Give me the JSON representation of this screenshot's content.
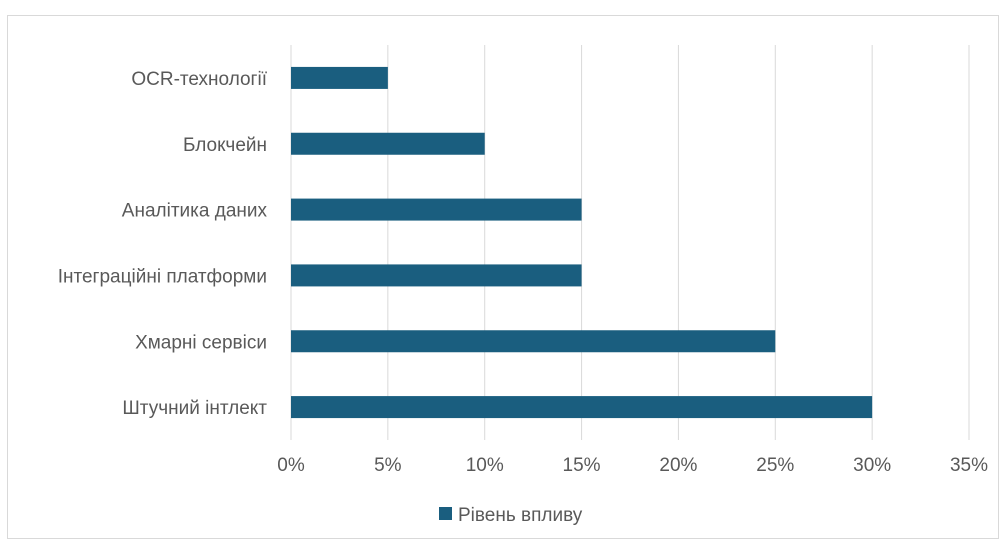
{
  "chart_data": {
    "type": "bar",
    "orientation": "horizontal",
    "title": "",
    "xlabel": "",
    "ylabel": "",
    "categories": [
      "OCR-технології",
      "Блокчейн",
      "Аналітика даних",
      "Інтеграційні платформи",
      "Хмарні сервіси",
      "Штучний інтлект"
    ],
    "series": [
      {
        "name": "Рівень впливу",
        "values": [
          0.05,
          0.1,
          0.15,
          0.15,
          0.25,
          0.3
        ],
        "color": "#1a5e7f"
      }
    ],
    "xlim": [
      0,
      0.35
    ],
    "x_ticks": [
      0,
      0.05,
      0.1,
      0.15,
      0.2,
      0.25,
      0.3,
      0.35
    ],
    "x_tick_labels": [
      "0%",
      "5%",
      "10%",
      "15%",
      "20%",
      "25%",
      "30%",
      "35%"
    ],
    "grid": "vertical",
    "legend_position": "bottom"
  }
}
